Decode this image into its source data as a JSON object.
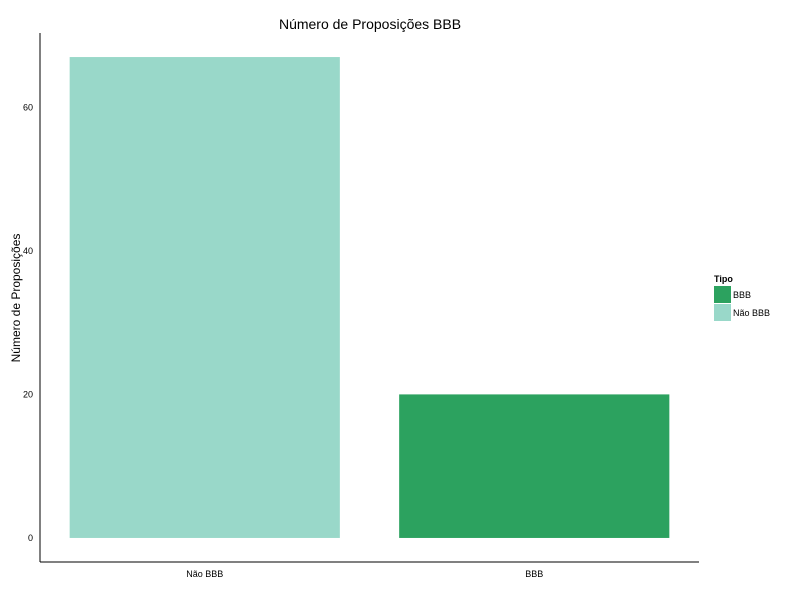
{
  "chart_data": {
    "type": "bar",
    "title": "Número de Proposições BBB",
    "xlabel": "",
    "ylabel": "Número de Proposições",
    "categories": [
      "Não BBB",
      "BBB"
    ],
    "values": [
      67,
      20
    ],
    "bar_colors": [
      "#99d8c9",
      "#2ca25f"
    ],
    "yticks": [
      0,
      20,
      40,
      60
    ],
    "ylim": [
      -3.35,
      70.35
    ],
    "grid": false,
    "legend": {
      "title": "Tipo",
      "position": "right",
      "entries": [
        {
          "label": "BBB",
          "color": "#2ca25f"
        },
        {
          "label": "Não BBB",
          "color": "#99d8c9"
        }
      ]
    }
  }
}
